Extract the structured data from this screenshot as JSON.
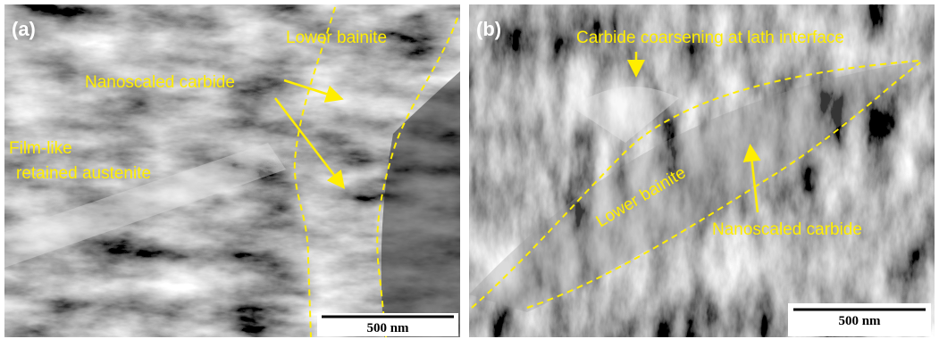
{
  "panels": [
    {
      "label": "(a)",
      "annotations": [
        "Lower bainite",
        "Nanoscaled carbide",
        "Film-like",
        "retained austenite"
      ],
      "scale_bar": "500 nm"
    },
    {
      "label": "(b)",
      "annotations": [
        "Carbide coarsening at lath interface",
        "Lower bainite",
        "Nanoscaled carbide"
      ],
      "scale_bar": "500 nm"
    }
  ]
}
